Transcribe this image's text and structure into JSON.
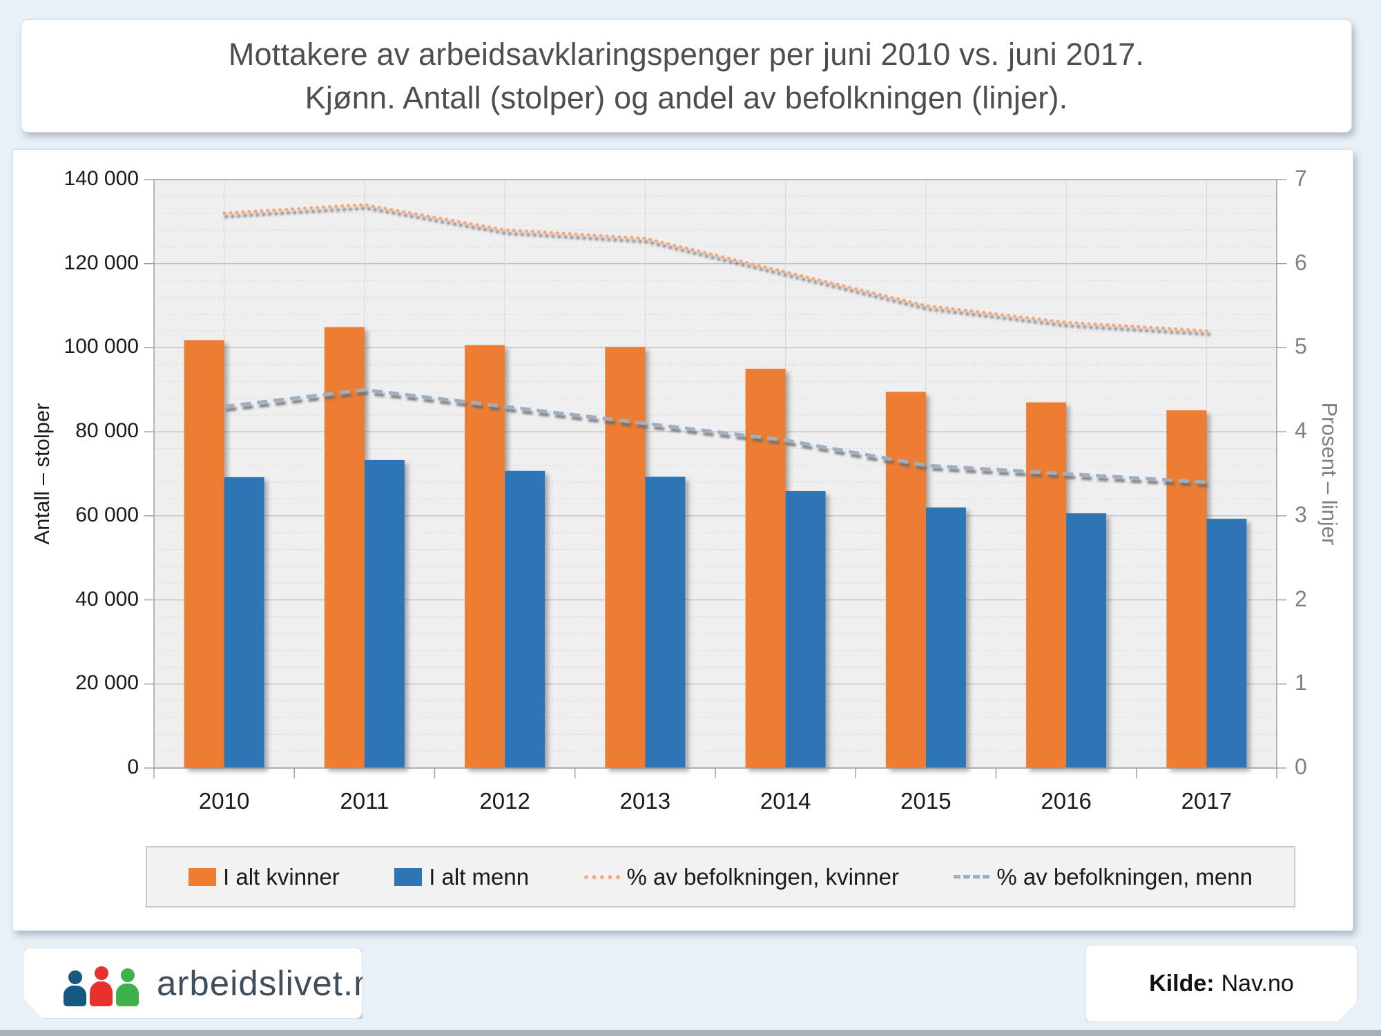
{
  "title": {
    "line1": "Mottakere av arbeidsavklaringspenger per juni 2010 vs. juni 2017.",
    "line2": "Kjønn. Antall (stolper) og andel av befolkningen (linjer)."
  },
  "chart_data": {
    "type": "bar+line combo",
    "categories": [
      "2010",
      "2011",
      "2012",
      "2013",
      "2014",
      "2015",
      "2016",
      "2017"
    ],
    "series": [
      {
        "name": "I alt kvinner",
        "type": "bar",
        "axis": "left",
        "color": "#ED7D31",
        "values": [
          101800,
          104900,
          100600,
          100200,
          95000,
          89500,
          87000,
          85100
        ]
      },
      {
        "name": "I alt menn",
        "type": "bar",
        "axis": "left",
        "color": "#2E75B6",
        "values": [
          69200,
          73300,
          70700,
          69300,
          65900,
          62000,
          60600,
          59300
        ]
      },
      {
        "name": "% av befolkningen, kvinner",
        "type": "line",
        "style": "dotted",
        "axis": "right",
        "color": "#F3AC7F",
        "values": [
          6.6,
          6.7,
          6.4,
          6.3,
          5.9,
          5.5,
          5.3,
          5.2
        ]
      },
      {
        "name": "% av befolkningen, menn",
        "type": "line",
        "style": "dashed",
        "axis": "right",
        "color": "#9FAFC2",
        "values": [
          4.3,
          4.5,
          4.3,
          4.1,
          3.9,
          3.6,
          3.5,
          3.4
        ]
      }
    ],
    "left_axis": {
      "title": "Antall – stolper",
      "min": 0,
      "max": 140000,
      "major_step": 20000,
      "minor_step": 4000,
      "tick_labels": [
        "0",
        "20 000",
        "40 000",
        "60 000",
        "80 000",
        "100 000",
        "120 000",
        "140 000"
      ]
    },
    "right_axis": {
      "title": "Prosent – linjer",
      "min": 0,
      "max": 7,
      "major_step": 1,
      "minor_step": 0.2,
      "tick_labels": [
        "0",
        "1",
        "2",
        "3",
        "4",
        "5",
        "6",
        "7"
      ]
    },
    "grid": {
      "major": true,
      "minor_dotted": true,
      "vertical_category_lines": true
    },
    "legend_position": "bottom",
    "plot_background": "#EFEFEF"
  },
  "legend": {
    "items": [
      {
        "label": "I alt kvinner",
        "marker": "square",
        "color": "#ED7D31"
      },
      {
        "label": "I alt menn",
        "marker": "square",
        "color": "#2E75B6"
      },
      {
        "label": "% av befolkningen, kvinner",
        "marker": "dotted-line",
        "color": "#F3AC7F"
      },
      {
        "label": "% av befolkningen, menn",
        "marker": "dashed-line",
        "color": "#9FAFC2"
      }
    ]
  },
  "footer": {
    "logo_text": "arbeidslivet.no",
    "logo_people_colors": [
      "#16587F",
      "#E8312E",
      "#3EB14B"
    ],
    "source_label": "Kilde:",
    "source_value": "Nav.no"
  }
}
